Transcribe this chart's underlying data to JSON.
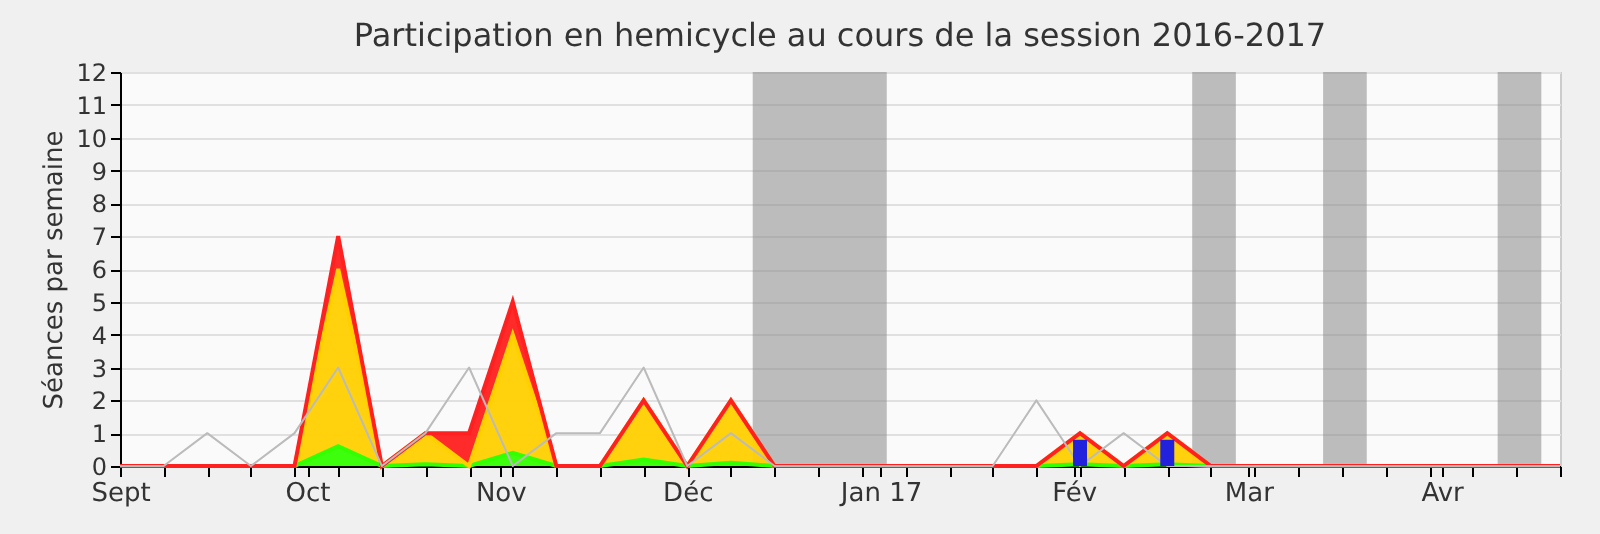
{
  "chart_data": {
    "type": "area",
    "title": "Participation en hemicycle au cours de la session 2016-2017",
    "ylabel": "Séances par semaine",
    "x": [
      "2016-09-01",
      "2016-09-08",
      "2016-09-15",
      "2016-09-22",
      "2016-09-29",
      "2016-10-06",
      "2016-10-13",
      "2016-10-20",
      "2016-10-27",
      "2016-11-03",
      "2016-11-10",
      "2016-11-17",
      "2016-11-24",
      "2016-12-01",
      "2016-12-08",
      "2016-12-15",
      "2016-12-22",
      "2016-12-29",
      "2017-01-05",
      "2017-01-12",
      "2017-01-19",
      "2017-01-26",
      "2017-02-02",
      "2017-02-09",
      "2017-02-16",
      "2017-02-23",
      "2017-03-02",
      "2017-03-09",
      "2017-03-16",
      "2017-03-23",
      "2017-03-30",
      "2017-04-06",
      "2017-04-13",
      "2017-04-20"
    ],
    "xlim": [
      "2016-09-01",
      "2017-04-20"
    ],
    "xticks": [
      {
        "value": "2016-09-01",
        "label": "Sept"
      },
      {
        "value": "2016-09-08",
        "label": null
      },
      {
        "value": "2016-09-15",
        "label": null
      },
      {
        "value": "2016-09-22",
        "label": null
      },
      {
        "value": "2016-09-29",
        "label": null
      },
      {
        "value": "2016-10-01",
        "label": "Oct"
      },
      {
        "value": "2016-10-06",
        "label": null
      },
      {
        "value": "2016-10-13",
        "label": null
      },
      {
        "value": "2016-10-20",
        "label": null
      },
      {
        "value": "2016-10-27",
        "label": null
      },
      {
        "value": "2016-11-01",
        "label": "Nov"
      },
      {
        "value": "2016-11-03",
        "label": null
      },
      {
        "value": "2016-11-10",
        "label": null
      },
      {
        "value": "2016-11-17",
        "label": null
      },
      {
        "value": "2016-11-24",
        "label": null
      },
      {
        "value": "2016-12-01",
        "label": "Déc"
      },
      {
        "value": "2016-12-08",
        "label": null
      },
      {
        "value": "2016-12-15",
        "label": null
      },
      {
        "value": "2016-12-22",
        "label": null
      },
      {
        "value": "2016-12-29",
        "label": null
      },
      {
        "value": "2017-01-01",
        "label": "Jan 17"
      },
      {
        "value": "2017-01-05",
        "label": null
      },
      {
        "value": "2017-01-12",
        "label": null
      },
      {
        "value": "2017-01-19",
        "label": null
      },
      {
        "value": "2017-01-26",
        "label": null
      },
      {
        "value": "2017-02-01",
        "label": "Fév"
      },
      {
        "value": "2017-02-02",
        "label": null
      },
      {
        "value": "2017-02-09",
        "label": null
      },
      {
        "value": "2017-02-16",
        "label": null
      },
      {
        "value": "2017-02-23",
        "label": null
      },
      {
        "value": "2017-03-01",
        "label": "Mar"
      },
      {
        "value": "2017-03-02",
        "label": null
      },
      {
        "value": "2017-03-09",
        "label": null
      },
      {
        "value": "2017-03-16",
        "label": null
      },
      {
        "value": "2017-03-23",
        "label": null
      },
      {
        "value": "2017-03-30",
        "label": null
      },
      {
        "value": "2017-04-01",
        "label": "Avr"
      },
      {
        "value": "2017-04-06",
        "label": null
      },
      {
        "value": "2017-04-13",
        "label": null
      },
      {
        "value": "2017-04-20",
        "label": null
      }
    ],
    "ylim": [
      0,
      12
    ],
    "yticks": [
      0,
      1,
      2,
      3,
      4,
      5,
      6,
      7,
      8,
      9,
      10,
      11,
      12
    ],
    "stacked": true,
    "grid": "y",
    "bands": [
      {
        "axis": "x",
        "from": "2016-12-11T12:00",
        "to": "2017-01-02",
        "color": "#888888"
      },
      {
        "axis": "x",
        "from": "2017-02-20",
        "to": "2017-02-27",
        "color": "#888888"
      },
      {
        "axis": "x",
        "from": "2017-03-13",
        "to": "2017-03-20",
        "color": "#888888"
      },
      {
        "axis": "x",
        "from": "2017-04-10",
        "to": "2017-04-17",
        "color": "#888888"
      }
    ],
    "series": [
      {
        "color": "#33ff00",
        "values": [
          0,
          0,
          0,
          0,
          0,
          0.6,
          0,
          0.05,
          0,
          0.4,
          0,
          0,
          0.2,
          0,
          0.1,
          0,
          0,
          0,
          0,
          0,
          0,
          0,
          0.05,
          0,
          0.05,
          0,
          0,
          0,
          0,
          0,
          0,
          0,
          0,
          0
        ]
      },
      {
        "color": "#ffd000",
        "values": [
          0,
          0,
          0,
          0,
          0,
          5.4,
          0,
          0.95,
          0,
          3.6,
          0,
          0,
          1.8,
          0,
          1.9,
          0,
          0,
          0,
          0,
          0,
          0,
          0,
          0.95,
          0,
          0.95,
          0,
          0,
          0,
          0,
          0,
          0,
          0,
          0,
          0
        ]
      },
      {
        "color": "#ff2020",
        "values": [
          0,
          0,
          0,
          0,
          0,
          1,
          0,
          0,
          1,
          1,
          0,
          0,
          0,
          0,
          0,
          0,
          0,
          0,
          0,
          0,
          0,
          0,
          0,
          0,
          0,
          0,
          0,
          0,
          0,
          0,
          0,
          0,
          0,
          0
        ]
      },
      {
        "type": "line",
        "color": "#bbbbbb",
        "values": [
          0,
          0,
          1,
          0,
          1,
          3,
          0,
          1,
          3,
          0,
          1,
          1,
          3,
          0,
          1,
          0,
          0,
          0,
          0,
          0,
          0,
          2,
          0,
          1,
          0,
          0,
          0,
          0,
          0,
          0,
          0,
          0,
          0,
          0
        ]
      },
      {
        "type": "bar",
        "color": "#2222dd",
        "x": [
          "2017-02-02",
          "2017-02-16"
        ],
        "values": [
          0.8,
          0.8
        ]
      }
    ]
  }
}
